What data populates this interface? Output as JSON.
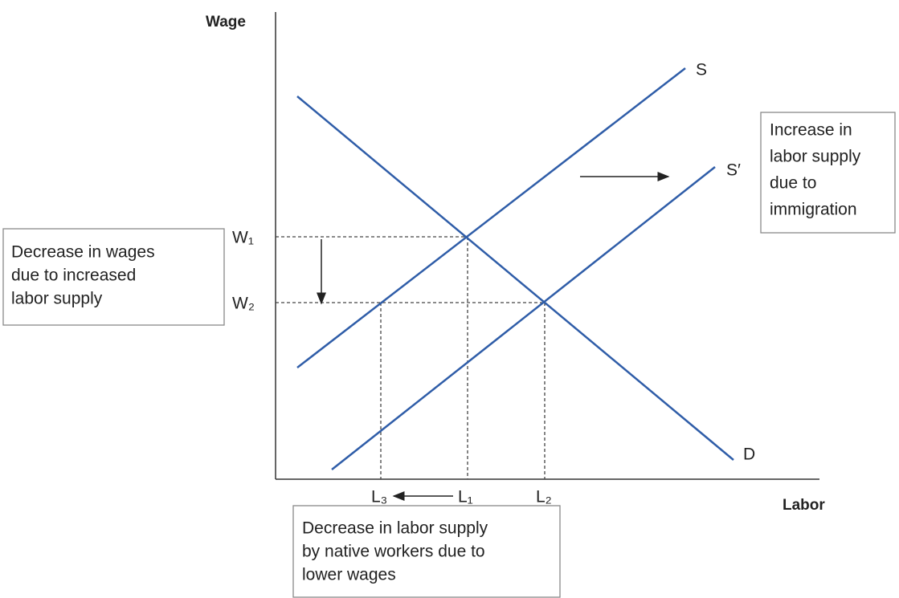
{
  "axes": {
    "y_label": "Wage",
    "x_label": "Labor"
  },
  "curves": {
    "supply": "S",
    "new_supply": "S′",
    "demand": "D"
  },
  "wage_levels": [
    "W₁",
    "W₂"
  ],
  "labor_levels": [
    "L₃",
    "L₁",
    "L₂"
  ],
  "notes": {
    "wages": [
      "Decrease in wages",
      "due to increased",
      "labor supply"
    ],
    "immigration": [
      "Increase in",
      "labor supply",
      "due to",
      "immigration"
    ],
    "native": [
      "Decrease in labor supply",
      "by native workers due to",
      "lower wages"
    ]
  }
}
